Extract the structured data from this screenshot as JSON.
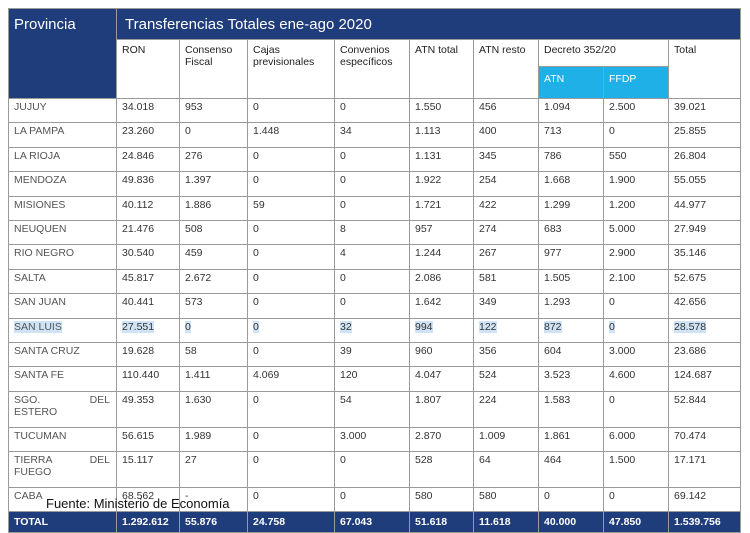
{
  "header": {
    "provincia": "Provincia",
    "title": "Transferencias Totales ene-ago 2020",
    "columns": [
      "RON",
      "Consenso Fiscal",
      "Cajas previsionales",
      "Convenios específicos",
      "ATN total",
      "ATN resto",
      "Decreto 352/20",
      "Total"
    ],
    "decreto_sub": [
      "ATN",
      "FFDP"
    ]
  },
  "rows": [
    {
      "provincia": "JUJUY",
      "values": [
        "34.018",
        "953",
        "0",
        "0",
        "1.550",
        "456",
        "1.094",
        "2.500",
        "39.021"
      ]
    },
    {
      "provincia": "LA PAMPA",
      "values": [
        "23.260",
        "0",
        "1.448",
        "34",
        "1.113",
        "400",
        "713",
        "0",
        "25.855"
      ]
    },
    {
      "provincia": "LA RIOJA",
      "values": [
        "24.846",
        "276",
        "0",
        "0",
        "1.131",
        "345",
        "786",
        "550",
        "26.804"
      ]
    },
    {
      "provincia": "MENDOZA",
      "values": [
        "49.836",
        "1.397",
        "0",
        "0",
        "1.922",
        "254",
        "1.668",
        "1.900",
        "55.055"
      ]
    },
    {
      "provincia": "MISIONES",
      "values": [
        "40.112",
        "1.886",
        "59",
        "0",
        "1.721",
        "422",
        "1.299",
        "1.200",
        "44.977"
      ]
    },
    {
      "provincia": "NEUQUEN",
      "values": [
        "21.476",
        "508",
        "0",
        "8",
        "957",
        "274",
        "683",
        "5.000",
        "27.949"
      ]
    },
    {
      "provincia": "RIO NEGRO",
      "values": [
        "30.540",
        "459",
        "0",
        "4",
        "1.244",
        "267",
        "977",
        "2.900",
        "35.146"
      ]
    },
    {
      "provincia": "SALTA",
      "values": [
        "45.817",
        "2.672",
        "0",
        "0",
        "2.086",
        "581",
        "1.505",
        "2.100",
        "52.675"
      ]
    },
    {
      "provincia": "SAN JUAN",
      "values": [
        "40.441",
        "573",
        "0",
        "0",
        "1.642",
        "349",
        "1.293",
        "0",
        "42.656"
      ]
    },
    {
      "provincia": "SAN LUIS",
      "values": [
        "27.551",
        "0",
        "0",
        "32",
        "994",
        "122",
        "872",
        "0",
        "28.578"
      ]
    },
    {
      "provincia": "SANTA CRUZ",
      "values": [
        "19.628",
        "58",
        "0",
        "39",
        "960",
        "356",
        "604",
        "3.000",
        "23.686"
      ]
    },
    {
      "provincia": "SANTA FE",
      "values": [
        "110.440",
        "1.411",
        "4.069",
        "120",
        "4.047",
        "524",
        "3.523",
        "4.600",
        "124.687"
      ]
    },
    {
      "provincia_a": "SGO.",
      "provincia_b": "DEL",
      "provincia_c": "ESTERO",
      "values": [
        "49.353",
        "1.630",
        "0",
        "54",
        "1.807",
        "224",
        "1.583",
        "0",
        "52.844"
      ]
    },
    {
      "provincia": "TUCUMAN",
      "values": [
        "56.615",
        "1.989",
        "0",
        "3.000",
        "2.870",
        "1.009",
        "1.861",
        "6.000",
        "70.474"
      ]
    },
    {
      "provincia_a": "TIERRA",
      "provincia_b": "DEL",
      "provincia_c": "FUEGO",
      "values": [
        "15.117",
        "27",
        "0",
        "0",
        "528",
        "64",
        "464",
        "1.500",
        "17.171"
      ]
    },
    {
      "provincia": "CABA",
      "values": [
        "68.562",
        "-",
        "0",
        "0",
        "580",
        "580",
        "0",
        "0",
        "69.142"
      ]
    }
  ],
  "total": {
    "label": "TOTAL",
    "values": [
      "1.292.612",
      "55.876",
      "24.758",
      "67.043",
      "51.618",
      "11.618",
      "40.000",
      "47.850",
      "1.539.756"
    ]
  },
  "source": "Fuente: Ministerio de Economía"
}
